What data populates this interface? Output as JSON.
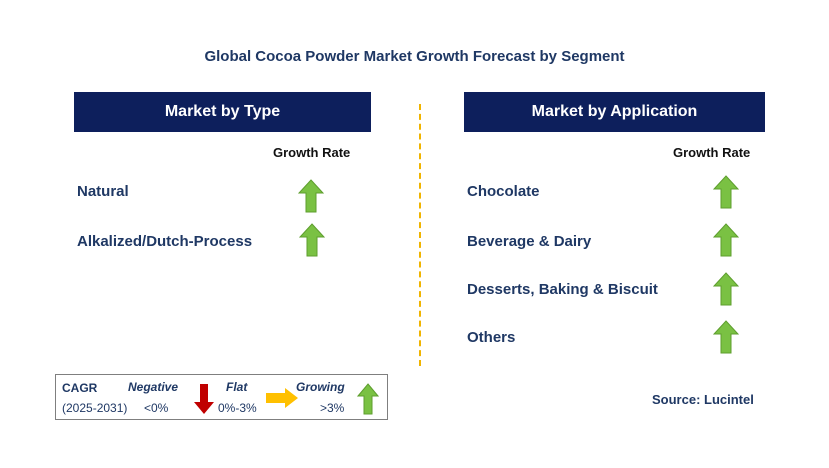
{
  "title": "Global Cocoa Powder Market Growth Forecast by Segment",
  "left_panel": {
    "header": "Market by Type",
    "column_label": "Growth Rate",
    "items": [
      {
        "label": "Natural",
        "trend": "growing"
      },
      {
        "label": "Alkalized/Dutch-Process",
        "trend": "growing"
      }
    ]
  },
  "right_panel": {
    "header": "Market by Application",
    "column_label": "Growth Rate",
    "items": [
      {
        "label": "Chocolate",
        "trend": "growing"
      },
      {
        "label": "Beverage & Dairy",
        "trend": "growing"
      },
      {
        "label": "Desserts, Baking & Biscuit",
        "trend": "growing"
      },
      {
        "label": "Others",
        "trend": "growing"
      }
    ]
  },
  "legend": {
    "cagr_label": "CAGR",
    "period": "(2025-2031)",
    "negative_label": "Negative",
    "negative_value": "<0%",
    "flat_label": "Flat",
    "flat_value": "0%-3%",
    "growing_label": "Growing",
    "growing_value": ">3%"
  },
  "source": "Source: Lucintel",
  "colors": {
    "header_bg": "#0d1f5c",
    "title_text": "#1f3864",
    "growing_arrow": "#7ac143",
    "negative_arrow": "#c00000",
    "flat_arrow": "#ffc000",
    "divider": "#f0b400"
  },
  "icons": {
    "growing": "up-arrow-icon",
    "negative": "down-arrow-icon",
    "flat": "right-arrow-icon"
  }
}
